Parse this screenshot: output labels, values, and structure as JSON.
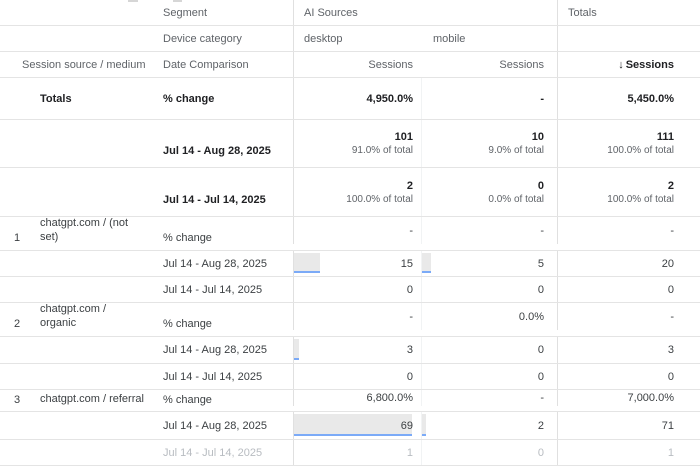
{
  "colors": {
    "bar_fill": "#e9e9e9",
    "bar_accent": "#7baaf7",
    "border": "#e4e4e4",
    "header_text": "#5f6368"
  },
  "header": {
    "segment_label": "Segment",
    "segment_value": "AI Sources",
    "totals_column_label": "Totals",
    "device_label": "Device category",
    "device_desktop": "desktop",
    "device_mobile": "mobile",
    "dimension_label": "Session source / medium",
    "date_comparison_label": "Date Comparison",
    "sessions_desktop": "Sessions",
    "sessions_mobile": "Sessions",
    "sessions_totals": "Sessions",
    "sort_arrow": "↓"
  },
  "totals": {
    "label": "Totals",
    "pct_change_label": "% change",
    "pct_change": [
      "4,950.0%",
      "-",
      "5,450.0%"
    ],
    "rows": [
      {
        "date": "Jul 14 - Aug 28, 2025",
        "values": [
          "101",
          "10",
          "111"
        ],
        "pct": [
          "91.0% of total",
          "9.0% of total",
          "100.0% of total"
        ]
      },
      {
        "date": "Jul 14 - Jul 14, 2025",
        "values": [
          "2",
          "0",
          "2"
        ],
        "pct": [
          "100.0% of total",
          "0.0% of total",
          "100.0% of total"
        ]
      }
    ]
  },
  "groups": [
    {
      "num": "1",
      "label_lines": [
        "chatgpt.com / (not",
        "set)"
      ],
      "pct_change_label": "% change",
      "pct_change": [
        "-",
        "-",
        "-"
      ],
      "rows": [
        {
          "date": "Jul 14 - Aug 28, 2025",
          "values": [
            "15",
            "5",
            "20"
          ],
          "bars": [
            26,
            9
          ]
        },
        {
          "date": "Jul 14 - Jul 14, 2025",
          "values": [
            "0",
            "0",
            "0"
          ],
          "bars": [
            0,
            0
          ]
        }
      ]
    },
    {
      "num": "2",
      "label_lines": [
        "chatgpt.com /",
        "organic"
      ],
      "pct_change_label": "% change",
      "pct_change": [
        "-",
        "0.0%",
        "-"
      ],
      "rows": [
        {
          "date": "Jul 14 - Aug 28, 2025",
          "values": [
            "3",
            "0",
            "3"
          ],
          "bars": [
            5,
            0
          ]
        },
        {
          "date": "Jul 14 - Jul 14, 2025",
          "values": [
            "0",
            "0",
            "0"
          ],
          "bars": [
            0,
            0
          ]
        }
      ]
    },
    {
      "num": "3",
      "label_lines": [
        "chatgpt.com / referral",
        ""
      ],
      "pct_change_label": "% change",
      "pct_change": [
        "6,800.0%",
        "-",
        "7,000.0%"
      ],
      "rows": [
        {
          "date": "Jul 14 - Aug 28, 2025",
          "values": [
            "69",
            "2",
            "71"
          ],
          "bars": [
            118,
            4
          ]
        },
        {
          "date": "Jul 14 - Jul 14, 2025",
          "values": [
            "1",
            "0",
            "1"
          ],
          "bars": [
            0,
            0
          ],
          "faded": true
        }
      ]
    }
  ]
}
